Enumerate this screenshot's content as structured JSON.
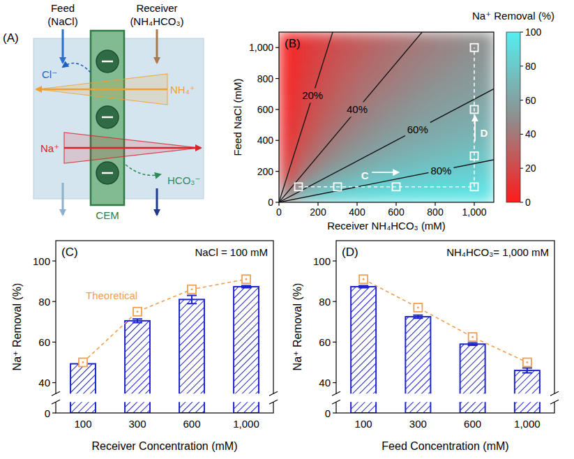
{
  "diagram": {
    "panel_label": "(A)",
    "feed": "Feed",
    "feed_solution": "(NaCl)",
    "receiver": "Receiver",
    "receiver_solution": "(NH₄HCO₃)",
    "membrane": "CEM",
    "ions": {
      "chloride": "Cl⁻",
      "ammonium": "NH₄⁺",
      "sodium": "Na⁺",
      "bicarbonate": "HCO₃⁻"
    }
  },
  "chart_data": [
    {
      "type": "heatmap",
      "panel_label": "(B)",
      "x_label": "Receiver NH₄HCO₃ (mM)",
      "y_label": "Feed NaCl (mM)",
      "xlim": [
        0,
        1100
      ],
      "ylim": [
        0,
        1100
      ],
      "xticks": [
        0,
        200,
        400,
        600,
        800,
        {
          "value": 1000,
          "label": "1,000"
        }
      ],
      "yticks": [
        0,
        200,
        400,
        600,
        800,
        {
          "value": 1000,
          "label": "1,000"
        }
      ],
      "cells": {
        "x_edges": [
          0,
          100,
          200,
          300,
          400,
          500,
          600,
          700,
          800,
          900,
          1000,
          1100
        ],
        "y_edges": [
          0,
          100,
          200,
          300,
          400,
          500,
          600,
          700,
          800,
          900,
          1000,
          1100
        ],
        "values": [
          [
            50,
            75,
            83,
            88,
            90,
            92,
            93,
            94,
            94,
            95,
            95
          ],
          [
            25,
            50,
            63,
            70,
            75,
            79,
            81,
            83,
            85,
            86,
            88
          ],
          [
            17,
            38,
            50,
            58,
            64,
            69,
            72,
            75,
            77,
            79,
            81
          ],
          [
            13,
            30,
            42,
            50,
            56,
            61,
            65,
            68,
            71,
            73,
            75
          ],
          [
            10,
            25,
            36,
            44,
            50,
            55,
            59,
            63,
            65,
            68,
            70
          ],
          [
            8,
            21,
            31,
            39,
            45,
            50,
            54,
            58,
            61,
            63,
            66
          ],
          [
            7,
            19,
            28,
            35,
            41,
            46,
            50,
            54,
            57,
            59,
            62
          ],
          [
            6,
            17,
            25,
            32,
            38,
            42,
            46,
            50,
            53,
            56,
            58
          ],
          [
            6,
            15,
            23,
            29,
            35,
            39,
            43,
            47,
            50,
            53,
            55
          ],
          [
            5,
            14,
            21,
            27,
            32,
            37,
            41,
            44,
            47,
            50,
            53
          ],
          [
            5,
            13,
            19,
            25,
            30,
            34,
            38,
            42,
            45,
            48,
            50
          ]
        ]
      },
      "colorbar": {
        "title": "Na⁺ Removal (%)",
        "range": [
          0,
          100
        ],
        "ticks": [
          0,
          20,
          40,
          60,
          80,
          100
        ],
        "colors": [
          "#ff1a1a",
          "#8f8f8f",
          "#55eef0"
        ]
      },
      "contours": [
        {
          "level": 20,
          "label": "20%",
          "x": [
            0,
            275
          ],
          "y": [
            0,
            1100
          ],
          "label_at": [
            172,
            690
          ]
        },
        {
          "level": 40,
          "label": "40%",
          "x": [
            0,
            733
          ],
          "y": [
            0,
            1100
          ],
          "label_at": [
            400,
            600
          ]
        },
        {
          "level": 60,
          "label": "60%",
          "x": [
            0,
            1100
          ],
          "y": [
            0,
            733
          ],
          "label_at": [
            710,
            473
          ]
        },
        {
          "level": 80,
          "label": "80%",
          "x": [
            0,
            1100
          ],
          "y": [
            0,
            275
          ],
          "label_at": [
            830,
            207
          ]
        }
      ],
      "experiments": {
        "x": [
          100,
          300,
          600,
          1000,
          1000,
          1000,
          1000
        ],
        "y": [
          100,
          100,
          100,
          100,
          300,
          600,
          1000
        ],
        "color": "#ffffff",
        "marker": "square"
      },
      "sweeps": [
        {
          "label": "C",
          "x": [
            100,
            1000
          ],
          "y": [
            100,
            100
          ],
          "label_at": [
            440,
            175
          ]
        },
        {
          "label": "D",
          "x": [
            1000,
            1000
          ],
          "y": [
            100,
            1000
          ],
          "label_at": [
            1050,
            450
          ]
        }
      ]
    },
    {
      "type": "bar",
      "panel_label": "(C)",
      "annotation": "NaCl = 100 mM",
      "x_label": "Receiver Concentration (mM)",
      "y_label": "Na⁺ Removal (%)",
      "categories": [
        "100",
        "300",
        "600",
        "1,000"
      ],
      "ylim": [
        0,
        110
      ],
      "y_break": [
        3,
        37
      ],
      "yticks": [
        0,
        40,
        60,
        80,
        100
      ],
      "series": [
        {
          "type": "bar",
          "color": "#1d24d0",
          "values": [
            49.3,
            70.5,
            81,
            87.3
          ],
          "errors": [
            0.4,
            0.9,
            2,
            0.5
          ]
        },
        {
          "name": "Theoretical",
          "type": "line",
          "marker": "square",
          "line_style": "dashed",
          "color": "#f0a050",
          "values": [
            50,
            75,
            86,
            91
          ]
        }
      ]
    },
    {
      "type": "bar",
      "panel_label": "(D)",
      "annotation": "NH₄HCO₃= 1,000 mM",
      "x_label": "Feed Concentration (mM)",
      "y_label": "Na⁺ Removal (%)",
      "categories": [
        "100",
        "300",
        "600",
        "1,000"
      ],
      "ylim": [
        0,
        110
      ],
      "y_break": [
        3,
        37
      ],
      "yticks": [
        0,
        40,
        60,
        80,
        100
      ],
      "series": [
        {
          "type": "bar",
          "color": "#1d24d0",
          "values": [
            87.3,
            72.5,
            59,
            46
          ],
          "errors": [
            0.5,
            0.8,
            0.6,
            1.2
          ]
        },
        {
          "type": "line",
          "marker": "square",
          "line_style": "dashed",
          "color": "#f0a050",
          "values": [
            91,
            77,
            62.5,
            50
          ]
        }
      ]
    }
  ]
}
